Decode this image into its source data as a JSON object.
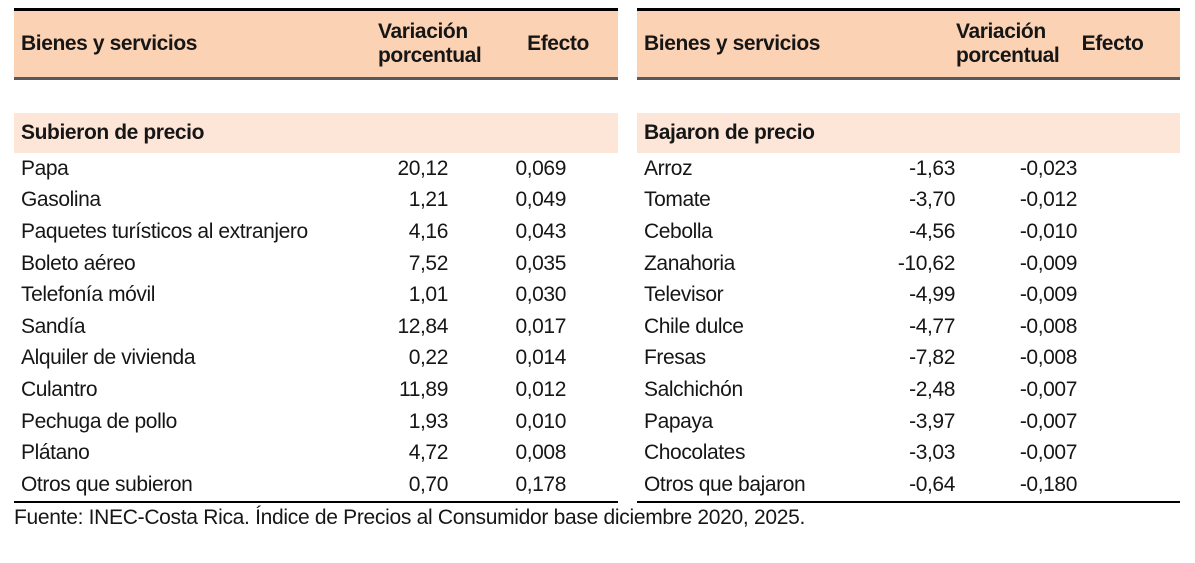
{
  "colors": {
    "header_bg": "#fcd2b5",
    "section_bg": "#fde5d8",
    "top_border": "#000000",
    "header_underline": "#59595b",
    "text": "#161616"
  },
  "tables": [
    {
      "columns": [
        "Bienes y servicios",
        "Variación porcentual",
        "Efecto"
      ],
      "section": "Subieron de precio",
      "rows": [
        {
          "name": "Papa",
          "variation": "20,12",
          "effect": "0,069"
        },
        {
          "name": "Gasolina",
          "variation": "1,21",
          "effect": "0,049"
        },
        {
          "name": "Paquetes turísticos al extranjero",
          "variation": "4,16",
          "effect": "0,043"
        },
        {
          "name": "Boleto aéreo",
          "variation": "7,52",
          "effect": "0,035"
        },
        {
          "name": "Telefonía móvil",
          "variation": "1,01",
          "effect": "0,030"
        },
        {
          "name": "Sandía",
          "variation": "12,84",
          "effect": "0,017"
        },
        {
          "name": "Alquiler de vivienda",
          "variation": "0,22",
          "effect": "0,014"
        },
        {
          "name": "Culantro",
          "variation": "11,89",
          "effect": "0,012"
        },
        {
          "name": "Pechuga de pollo",
          "variation": "1,93",
          "effect": "0,010"
        },
        {
          "name": "Plátano",
          "variation": "4,72",
          "effect": "0,008"
        },
        {
          "name": "Otros que subieron",
          "variation": "0,70",
          "effect": "0,178"
        }
      ]
    },
    {
      "columns": [
        "Bienes y servicios",
        "Variación porcentual",
        "Efecto"
      ],
      "section": "Bajaron de precio",
      "rows": [
        {
          "name": "Arroz",
          "variation": "-1,63",
          "effect": "-0,023"
        },
        {
          "name": "Tomate",
          "variation": "-3,70",
          "effect": "-0,012"
        },
        {
          "name": "Cebolla",
          "variation": "-4,56",
          "effect": "-0,010"
        },
        {
          "name": "Zanahoria",
          "variation": "-10,62",
          "effect": "-0,009"
        },
        {
          "name": "Televisor",
          "variation": "-4,99",
          "effect": "-0,009"
        },
        {
          "name": "Chile dulce",
          "variation": "-4,77",
          "effect": "-0,008"
        },
        {
          "name": "Fresas",
          "variation": "-7,82",
          "effect": "-0,008"
        },
        {
          "name": "Salchichón",
          "variation": "-2,48",
          "effect": "-0,007"
        },
        {
          "name": "Papaya",
          "variation": "-3,97",
          "effect": "-0,007"
        },
        {
          "name": "Chocolates",
          "variation": "-3,03",
          "effect": "-0,007"
        },
        {
          "name": "Otros que bajaron",
          "variation": "-0,64",
          "effect": "-0,180"
        }
      ]
    }
  ],
  "footer": {
    "text": "Fuente: INEC-Costa Rica. Índice de Precios al Consumidor base diciembre 2020, 2025."
  }
}
